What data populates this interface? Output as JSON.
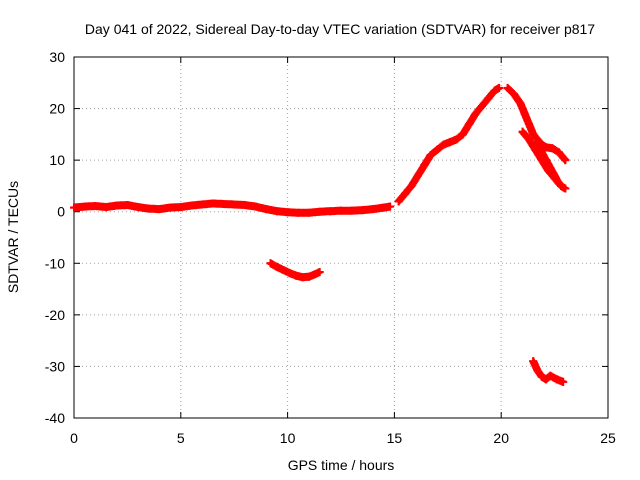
{
  "chart_data": {
    "type": "scatter",
    "title": "Day 041 of 2022, Sidereal Day-to-day VTEC variation (SDTVAR) for receiver p817",
    "xlabel": "GPS time / hours",
    "ylabel": "SDTVAR / TECUs",
    "xlim": [
      0,
      25
    ],
    "ylim": [
      -40,
      30
    ],
    "xticks": [
      0,
      5,
      10,
      15,
      20,
      25
    ],
    "yticks": [
      -40,
      -30,
      -20,
      -10,
      0,
      10,
      20,
      30
    ],
    "grid": true,
    "marker": "plus",
    "color": "#ff0000",
    "series": [
      {
        "name": "main-track",
        "points": [
          [
            0.0,
            0.8
          ],
          [
            0.5,
            1.0
          ],
          [
            1.0,
            1.1
          ],
          [
            1.5,
            0.9
          ],
          [
            2.0,
            1.2
          ],
          [
            2.5,
            1.3
          ],
          [
            3.0,
            0.9
          ],
          [
            3.5,
            0.6
          ],
          [
            4.0,
            0.5
          ],
          [
            4.5,
            0.8
          ],
          [
            5.0,
            0.9
          ],
          [
            5.5,
            1.2
          ],
          [
            6.0,
            1.4
          ],
          [
            6.5,
            1.6
          ],
          [
            7.0,
            1.5
          ],
          [
            7.5,
            1.4
          ],
          [
            8.0,
            1.3
          ],
          [
            8.5,
            1.0
          ],
          [
            9.0,
            0.5
          ],
          [
            9.5,
            0.1
          ],
          [
            10.0,
            -0.1
          ],
          [
            10.5,
            -0.2
          ],
          [
            11.0,
            -0.2
          ],
          [
            11.5,
            0.0
          ],
          [
            12.0,
            0.1
          ],
          [
            12.5,
            0.2
          ],
          [
            13.0,
            0.2
          ],
          [
            13.5,
            0.3
          ],
          [
            14.0,
            0.5
          ],
          [
            14.5,
            0.8
          ],
          [
            14.8,
            1.0
          ]
        ]
      },
      {
        "name": "negative-arc",
        "points": [
          [
            9.2,
            -10.0
          ],
          [
            9.5,
            -10.7
          ],
          [
            9.8,
            -11.3
          ],
          [
            10.1,
            -11.9
          ],
          [
            10.4,
            -12.4
          ],
          [
            10.7,
            -12.7
          ],
          [
            11.0,
            -12.6
          ],
          [
            11.3,
            -12.1
          ],
          [
            11.5,
            -11.7
          ]
        ]
      },
      {
        "name": "rise-track",
        "points": [
          [
            15.2,
            2.0
          ],
          [
            15.5,
            3.5
          ],
          [
            15.8,
            5.0
          ],
          [
            16.1,
            7.0
          ],
          [
            16.4,
            9.0
          ],
          [
            16.7,
            11.0
          ],
          [
            17.0,
            12.0
          ],
          [
            17.3,
            13.0
          ],
          [
            17.6,
            13.5
          ],
          [
            17.9,
            14.0
          ],
          [
            18.2,
            15.0
          ],
          [
            18.5,
            17.0
          ],
          [
            18.8,
            19.0
          ],
          [
            19.1,
            20.5
          ],
          [
            19.4,
            22.0
          ],
          [
            19.7,
            23.5
          ],
          [
            19.9,
            24.0
          ]
        ]
      },
      {
        "name": "fall-track-upper",
        "points": [
          [
            20.3,
            24.0
          ],
          [
            20.6,
            22.8
          ],
          [
            20.9,
            21.0
          ],
          [
            21.1,
            19.0
          ],
          [
            21.3,
            17.0
          ],
          [
            21.5,
            15.0
          ],
          [
            21.7,
            14.0
          ],
          [
            21.9,
            13.0
          ],
          [
            22.1,
            12.5
          ],
          [
            22.4,
            12.3
          ],
          [
            22.7,
            11.5
          ],
          [
            23.0,
            10.0
          ]
        ]
      },
      {
        "name": "fall-track-lower",
        "points": [
          [
            21.0,
            15.5
          ],
          [
            21.3,
            14.0
          ],
          [
            21.6,
            12.0
          ],
          [
            21.9,
            10.0
          ],
          [
            22.2,
            8.0
          ],
          [
            22.5,
            6.5
          ],
          [
            22.8,
            5.0
          ],
          [
            23.0,
            4.5
          ]
        ]
      },
      {
        "name": "fall-track-middle",
        "points": [
          [
            21.6,
            13.5
          ],
          [
            21.9,
            11.5
          ],
          [
            22.1,
            10.0
          ],
          [
            22.3,
            8.5
          ],
          [
            22.5,
            7.0
          ],
          [
            22.7,
            5.5
          ]
        ]
      },
      {
        "name": "deep-negative",
        "points": [
          [
            21.5,
            -29.0
          ],
          [
            21.7,
            -30.8
          ],
          [
            21.9,
            -32.0
          ],
          [
            22.1,
            -32.5
          ],
          [
            22.3,
            -31.8
          ],
          [
            22.6,
            -32.5
          ],
          [
            22.9,
            -33.0
          ]
        ]
      }
    ]
  }
}
